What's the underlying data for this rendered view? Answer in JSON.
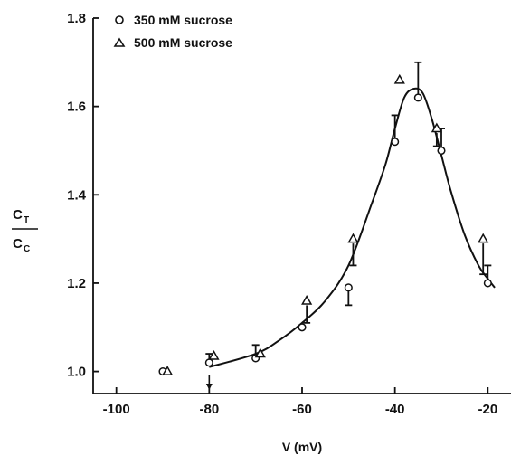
{
  "chart_data": {
    "type": "scatter",
    "xlabel": "V (mV)",
    "ylabel_numerator": "C",
    "ylabel_numerator_sub": "T",
    "ylabel_denominator": "C",
    "ylabel_denominator_sub": "C",
    "xlim": [
      -105,
      -15
    ],
    "ylim": [
      0.95,
      1.8
    ],
    "x_ticks": [
      -100,
      -80,
      -60,
      -40,
      -20
    ],
    "x_tick_labels": [
      "-100",
      "-80",
      "-60",
      "-40",
      "-20"
    ],
    "y_ticks": [
      1.0,
      1.2,
      1.4,
      1.6,
      1.8
    ],
    "y_tick_labels": [
      "1.0",
      "1.2",
      "1.4",
      "1.6",
      "1.8"
    ],
    "legend_position": "top-left",
    "series": [
      {
        "name": "350 mM sucrose",
        "marker": "circle",
        "x": [
          -90,
          -80,
          -70,
          -60,
          -50,
          -40,
          -35,
          -30,
          -20
        ],
        "y": [
          1.0,
          1.02,
          1.03,
          1.1,
          1.19,
          1.52,
          1.62,
          1.5,
          1.2
        ],
        "error_plus": [
          0,
          0.02,
          0.03,
          0,
          0,
          0.06,
          0.08,
          0.05,
          0.04
        ],
        "error_minus": [
          0,
          0,
          0,
          0,
          0.04,
          0,
          0,
          0,
          0
        ]
      },
      {
        "name": "500 mM sucrose",
        "marker": "triangle",
        "x": [
          -89,
          -79,
          -69,
          -59,
          -49,
          -39,
          -31,
          -21
        ],
        "y": [
          1.0,
          1.035,
          1.04,
          1.16,
          1.3,
          1.66,
          1.55,
          1.3
        ],
        "error_plus": [
          0,
          0,
          0,
          0,
          0,
          0,
          0,
          0
        ],
        "error_minus": [
          0,
          0,
          0,
          0.05,
          0.06,
          0,
          0.04,
          0.08
        ]
      }
    ],
    "fit_curve": {
      "x": [
        -80,
        -70,
        -65,
        -60,
        -55,
        -50,
        -45,
        -42,
        -40,
        -38,
        -36,
        -34,
        -32,
        -30,
        -28,
        -25,
        -22,
        -20,
        -18.5
      ],
      "y": [
        1.01,
        1.04,
        1.07,
        1.11,
        1.16,
        1.24,
        1.38,
        1.47,
        1.55,
        1.62,
        1.64,
        1.63,
        1.57,
        1.49,
        1.41,
        1.31,
        1.24,
        1.21,
        1.19
      ]
    },
    "annotations": [
      {
        "type": "arrow-down",
        "x": -80,
        "note": ""
      }
    ]
  }
}
